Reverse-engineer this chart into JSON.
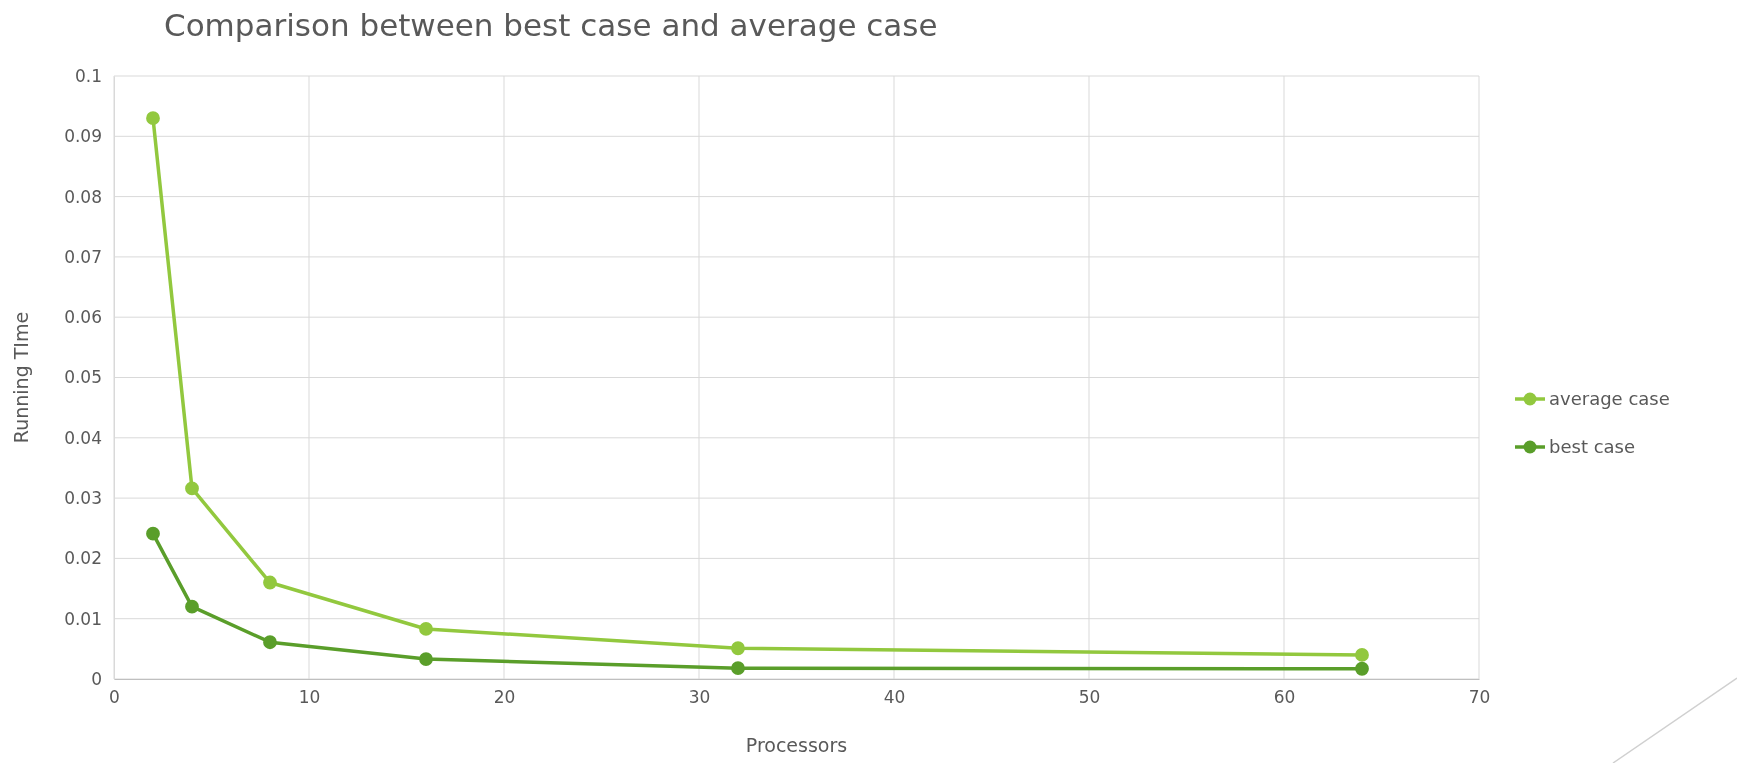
{
  "chart_data": {
    "type": "line",
    "title": "Comparison between best case and average case",
    "xlabel": "Processors",
    "ylabel": "Running TIme",
    "x": [
      2,
      4,
      8,
      16,
      32,
      64
    ],
    "series": [
      {
        "name": "average case",
        "color": "#92c83e",
        "values": [
          0.093,
          0.0316,
          0.016,
          0.0083,
          0.0051,
          0.004
        ]
      },
      {
        "name": "best case",
        "color": "#5a9e2a",
        "values": [
          0.0241,
          0.012,
          0.0061,
          0.0033,
          0.0018,
          0.0017
        ]
      }
    ],
    "xlim": [
      0,
      70
    ],
    "xticks": [
      0,
      10,
      20,
      30,
      40,
      50,
      60,
      70
    ],
    "ylim": [
      0,
      0.1
    ],
    "yticks": [
      0,
      0.01,
      0.02,
      0.03,
      0.04,
      0.05,
      0.06,
      0.07,
      0.08,
      0.09,
      0.1
    ],
    "grid": true,
    "legend": "right",
    "marker": "circle",
    "line_style": "solid"
  }
}
